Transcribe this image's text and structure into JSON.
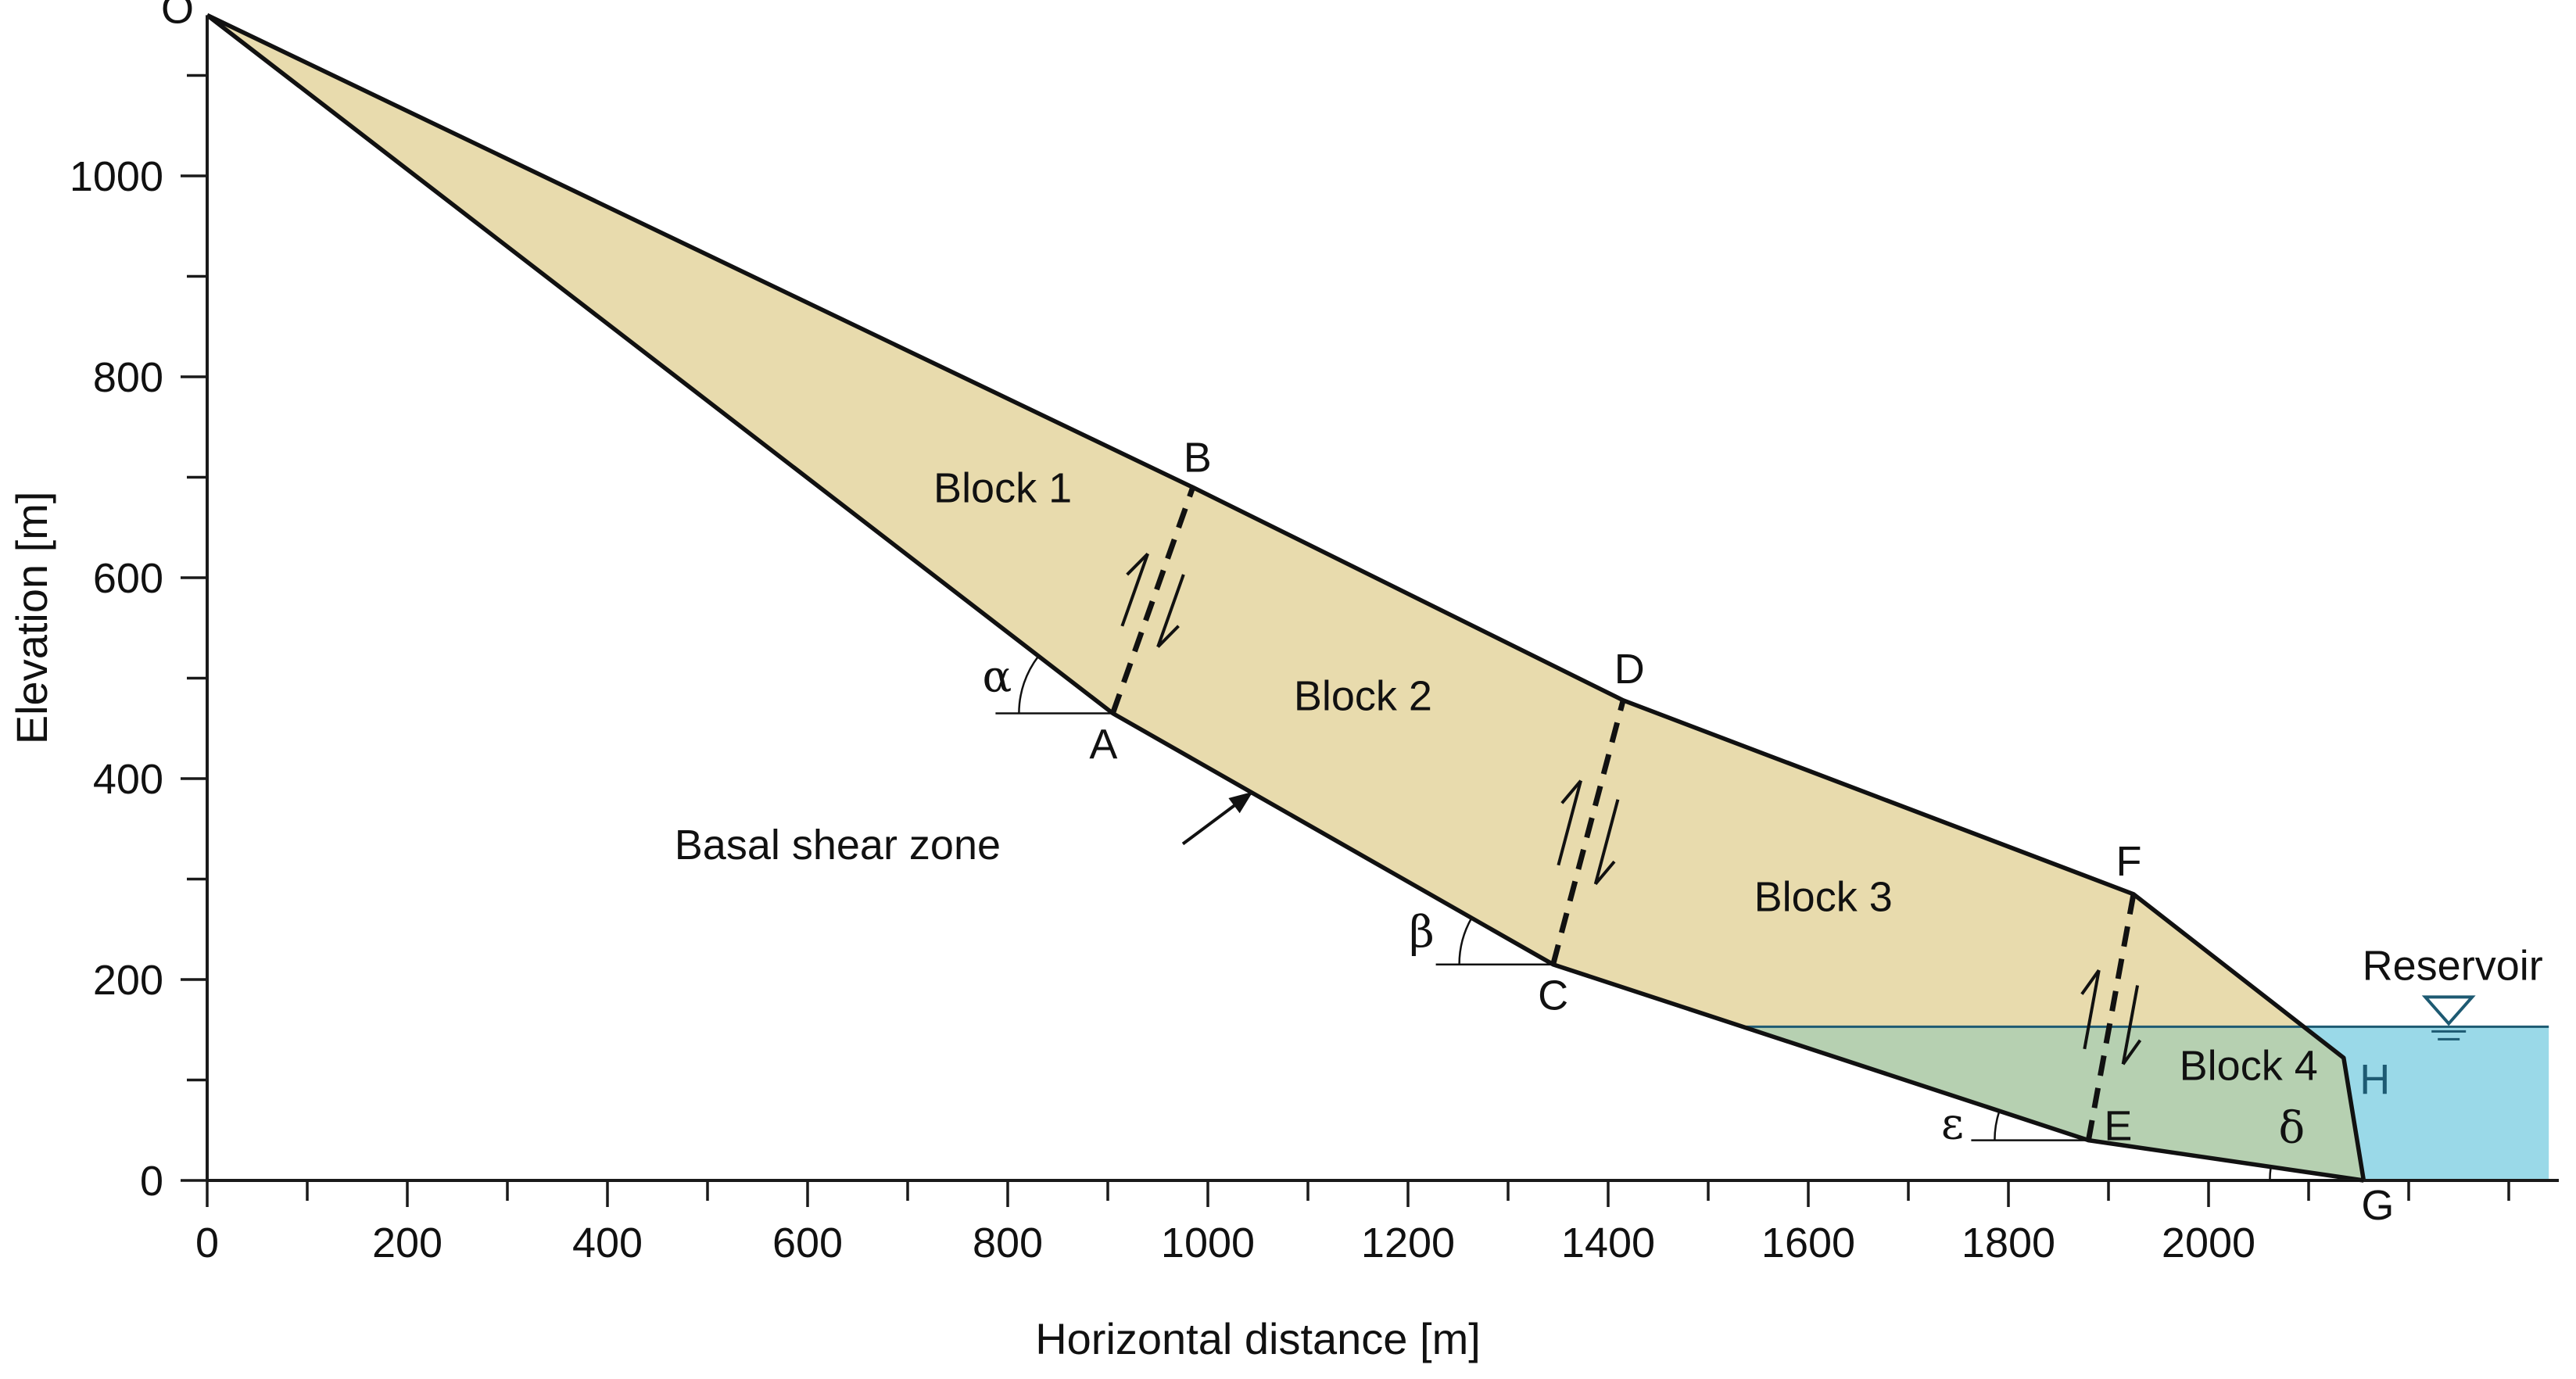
{
  "axes": {
    "x_title": "Horizontal distance  [m]",
    "y_title": "Elevation [m]",
    "x_range": [
      0,
      2350
    ],
    "y_range": [
      0,
      1160
    ],
    "x_ticks_major": [
      0,
      200,
      400,
      600,
      800,
      1000,
      1200,
      1400,
      1600,
      1800,
      2000
    ],
    "x_ticks_minor_step": 100,
    "y_ticks_major": [
      0,
      200,
      400,
      600,
      800,
      1000
    ],
    "y_ticks_minor_step": 100,
    "x_tick_labels": [
      "0",
      "200",
      "400",
      "600",
      "800",
      "1000",
      "1200",
      "1400",
      "1600",
      "1800",
      "2000"
    ],
    "y_tick_labels": [
      "0",
      "200",
      "400",
      "600",
      "800",
      "1000"
    ]
  },
  "profile": {
    "points": {
      "O": [
        0,
        1160
      ],
      "A": [
        905,
        465
      ],
      "B": [
        985,
        690
      ],
      "C": [
        1345,
        215
      ],
      "D": [
        1415,
        478
      ],
      "E": [
        1880,
        40
      ],
      "F": [
        1925,
        285
      ],
      "G": [
        2155,
        0
      ],
      "H": [
        2135,
        122
      ]
    },
    "point_labels": {
      "O": "O",
      "A": "A",
      "B": "B",
      "C": "C",
      "D": "D",
      "E": "E",
      "F": "F",
      "G": "G",
      "H": "H"
    }
  },
  "blocks": [
    {
      "label": "Block 1",
      "at": [
        795,
        675
      ]
    },
    {
      "label": "Block 2",
      "at": [
        1155,
        468
      ]
    },
    {
      "label": "Block 3",
      "at": [
        1615,
        268
      ]
    },
    {
      "label": "Block 4",
      "at": [
        2040,
        100
      ]
    }
  ],
  "angles": [
    {
      "symbol": "α",
      "vertex": "A"
    },
    {
      "symbol": "β",
      "vertex": "C"
    },
    {
      "symbol": "ε",
      "vertex": "E"
    },
    {
      "symbol": "δ",
      "vertex": "G"
    }
  ],
  "annotation": {
    "text": "Basal shear zone"
  },
  "reservoir": {
    "label": "Reservoir",
    "water_level": 153,
    "right_edge": 2340
  },
  "colors": {
    "rock_fill": "#e8dbad",
    "submerged_fill": "#b6d0b1",
    "water_fill": "#9ad9e8",
    "water_line": "#1d5a72",
    "label_H": "#1d5a72",
    "axis": "#1a1a1a"
  }
}
